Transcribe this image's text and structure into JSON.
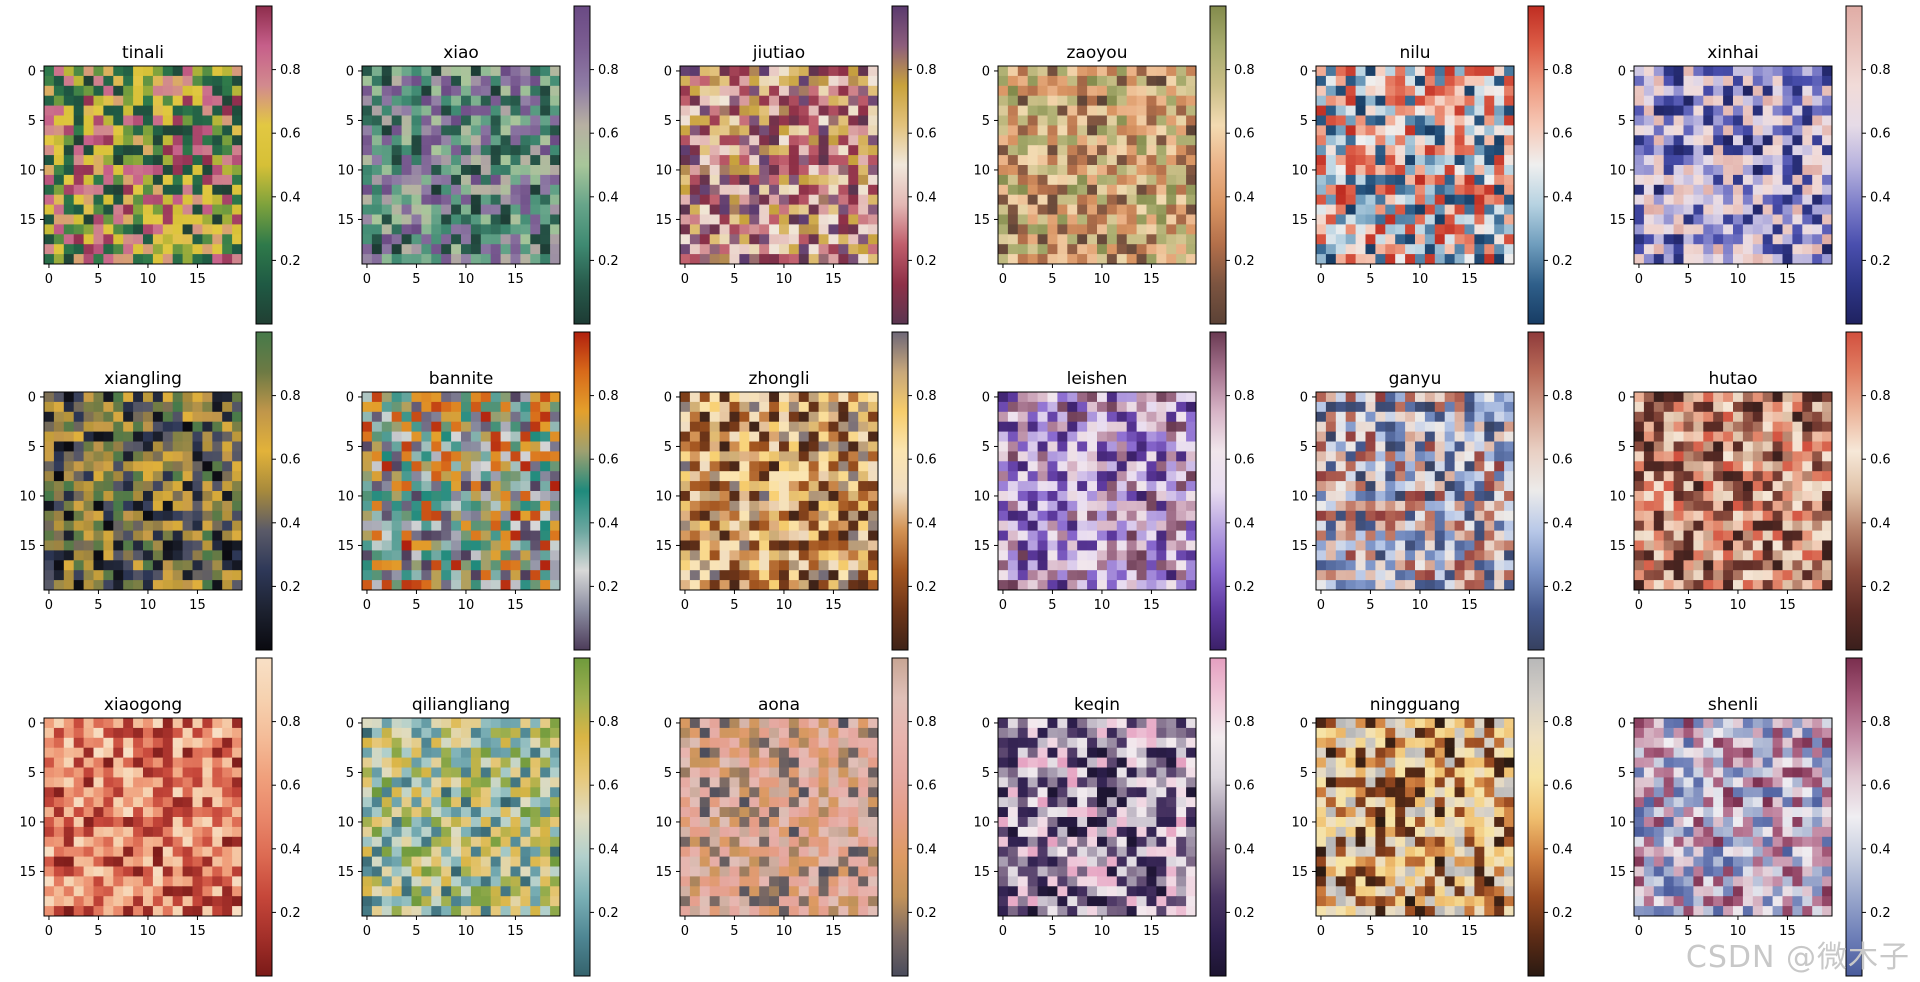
{
  "watermark": "CSDN @微木子",
  "chart_data": [
    {
      "type": "heatmap",
      "title": "tinali",
      "colormap": [
        "#213f33",
        "#1f5a44",
        "#2f7a4a",
        "#7ea23c",
        "#d6c037",
        "#e2c842",
        "#d28a8e",
        "#c65f8a",
        "#8e2d4c"
      ],
      "rows": 20,
      "cols": 20,
      "x_ticks": [
        0,
        5,
        10,
        15
      ],
      "y_ticks": [
        0,
        5,
        10,
        15
      ],
      "colorbar_ticks": [
        "0.2",
        "0.4",
        "0.6",
        "0.8"
      ],
      "value_range": [
        0,
        1
      ]
    },
    {
      "type": "heatmap",
      "title": "xiao",
      "colormap": [
        "#1d3b34",
        "#285b4c",
        "#3f8a72",
        "#67a58a",
        "#a8c69a",
        "#b7b0a2",
        "#8f7ca5",
        "#7b5d92",
        "#6a4a84"
      ],
      "rows": 20,
      "cols": 20,
      "x_ticks": [
        0,
        5,
        10,
        15
      ],
      "y_ticks": [
        0,
        5,
        10,
        15
      ],
      "colorbar_ticks": [
        "0.2",
        "0.4",
        "0.6",
        "0.8"
      ],
      "value_range": [
        0,
        1
      ]
    },
    {
      "type": "heatmap",
      "title": "jiutiao",
      "colormap": [
        "#5a3550",
        "#8e3047",
        "#c05e6c",
        "#e3b7b4",
        "#f1e8dc",
        "#e2c27c",
        "#c8a23c",
        "#8d5e7c",
        "#5a3a6e"
      ],
      "rows": 20,
      "cols": 20,
      "x_ticks": [
        0,
        5,
        10,
        15
      ],
      "y_ticks": [
        0,
        5,
        10,
        15
      ],
      "colorbar_ticks": [
        "0.2",
        "0.4",
        "0.6",
        "0.8"
      ],
      "value_range": [
        0,
        1
      ]
    },
    {
      "type": "heatmap",
      "title": "zaoyou",
      "colormap": [
        "#5b4236",
        "#7c5440",
        "#b36f4a",
        "#d99563",
        "#ebb388",
        "#f3dbb2",
        "#c9be86",
        "#a7ab6d",
        "#838b4c"
      ],
      "rows": 20,
      "cols": 20,
      "x_ticks": [
        0,
        5,
        10,
        15
      ],
      "y_ticks": [
        0,
        5,
        10,
        15
      ],
      "colorbar_ticks": [
        "0.2",
        "0.4",
        "0.6",
        "0.8"
      ],
      "value_range": [
        0,
        1
      ]
    },
    {
      "type": "heatmap",
      "title": "nilu",
      "colormap": [
        "#173c64",
        "#2f5f8a",
        "#6f9dbd",
        "#b6d2e1",
        "#efefef",
        "#f6c8b6",
        "#ee9a80",
        "#dd5d47",
        "#bf2d22"
      ],
      "rows": 20,
      "cols": 20,
      "x_ticks": [
        0,
        5,
        10,
        15
      ],
      "y_ticks": [
        0,
        5,
        10,
        15
      ],
      "colorbar_ticks": [
        "0.2",
        "0.4",
        "0.6",
        "0.8"
      ],
      "value_range": [
        0,
        1
      ]
    },
    {
      "type": "heatmap",
      "title": "xinhai",
      "colormap": [
        "#1f2260",
        "#2e3687",
        "#4a4fae",
        "#7d7ec9",
        "#b8b3de",
        "#e6dbe7",
        "#f1dbd8",
        "#e9c3bd",
        "#e0aca5"
      ],
      "rows": 20,
      "cols": 20,
      "x_ticks": [
        0,
        5,
        10,
        15
      ],
      "y_ticks": [
        0,
        5,
        10,
        15
      ],
      "colorbar_ticks": [
        "0.2",
        "0.4",
        "0.6",
        "0.8"
      ],
      "value_range": [
        0,
        1
      ]
    },
    {
      "type": "heatmap",
      "title": "xiangling",
      "colormap": [
        "#0a0a10",
        "#1d2230",
        "#2e3858",
        "#5a5a68",
        "#a78a3c",
        "#e2b23a",
        "#c0964a",
        "#6d7a44",
        "#467a4a"
      ],
      "rows": 20,
      "cols": 20,
      "x_ticks": [
        0,
        5,
        10,
        15
      ],
      "y_ticks": [
        0,
        5,
        10,
        15
      ],
      "colorbar_ticks": [
        "0.2",
        "0.4",
        "0.6",
        "0.8"
      ],
      "value_range": [
        0,
        1
      ]
    },
    {
      "type": "heatmap",
      "title": "bannite",
      "colormap": [
        "#4d3c5a",
        "#8a8ca0",
        "#d8d8d8",
        "#6ca7a0",
        "#1f8a7c",
        "#9ea070",
        "#e3a02c",
        "#d86a1a",
        "#b0200e"
      ],
      "rows": 20,
      "cols": 20,
      "x_ticks": [
        0,
        5,
        10,
        15
      ],
      "y_ticks": [
        0,
        5,
        10,
        15
      ],
      "colorbar_ticks": [
        "0.2",
        "0.4",
        "0.6",
        "0.8"
      ],
      "value_range": [
        0,
        1
      ]
    },
    {
      "type": "heatmap",
      "title": "zhongli",
      "colormap": [
        "#3f2318",
        "#6e3518",
        "#a3551f",
        "#d29152",
        "#f0ddc2",
        "#fbe5b1",
        "#f7cd6b",
        "#c7a77a",
        "#6f6878"
      ],
      "rows": 20,
      "cols": 20,
      "x_ticks": [
        0,
        5,
        10,
        15
      ],
      "y_ticks": [
        0,
        5,
        10,
        15
      ],
      "colorbar_ticks": [
        "0.2",
        "0.4",
        "0.6",
        "0.8"
      ],
      "value_range": [
        0,
        1
      ]
    },
    {
      "type": "heatmap",
      "title": "leishen",
      "colormap": [
        "#3b2068",
        "#5e3aa0",
        "#8a6ad0",
        "#b5a0e0",
        "#e8dcf0",
        "#f1e6ec",
        "#d7b4c6",
        "#a6748f",
        "#6a3a52"
      ],
      "rows": 20,
      "cols": 20,
      "x_ticks": [
        0,
        5,
        10,
        15
      ],
      "y_ticks": [
        0,
        5,
        10,
        15
      ],
      "colorbar_ticks": [
        "0.2",
        "0.4",
        "0.6",
        "0.8"
      ],
      "value_range": [
        0,
        1
      ]
    },
    {
      "type": "heatmap",
      "title": "ganyu",
      "colormap": [
        "#36405f",
        "#465a8f",
        "#7a92c6",
        "#b8c8e8",
        "#ecebea",
        "#e9d0c4",
        "#d5a08d",
        "#b96a58",
        "#8f3b3b"
      ],
      "rows": 20,
      "cols": 20,
      "x_ticks": [
        0,
        5,
        10,
        15
      ],
      "y_ticks": [
        0,
        5,
        10,
        15
      ],
      "colorbar_ticks": [
        "0.2",
        "0.4",
        "0.6",
        "0.8"
      ],
      "value_range": [
        0,
        1
      ]
    },
    {
      "type": "heatmap",
      "title": "hutao",
      "colormap": [
        "#3a1f1c",
        "#5e2c26",
        "#8a4a3c",
        "#b6806a",
        "#e0c2a8",
        "#f6e8d8",
        "#ecb49a",
        "#e07e63",
        "#d2503e"
      ],
      "rows": 20,
      "cols": 20,
      "x_ticks": [
        0,
        5,
        10,
        15
      ],
      "y_ticks": [
        0,
        5,
        10,
        15
      ],
      "colorbar_ticks": [
        "0.2",
        "0.4",
        "0.6",
        "0.8"
      ],
      "value_range": [
        0,
        1
      ]
    },
    {
      "type": "heatmap",
      "title": "xiaogong",
      "colormap": [
        "#7a1a18",
        "#a4302a",
        "#c6473a",
        "#dc6a52",
        "#e9876a",
        "#f0a07c",
        "#f4bc98",
        "#f6d2b0",
        "#f8e0c6"
      ],
      "rows": 20,
      "cols": 20,
      "x_ticks": [
        0,
        5,
        10,
        15
      ],
      "y_ticks": [
        0,
        5,
        10,
        15
      ],
      "colorbar_ticks": [
        "0.2",
        "0.4",
        "0.6",
        "0.8"
      ],
      "value_range": [
        0,
        1
      ]
    },
    {
      "type": "heatmap",
      "title": "qiliangliang",
      "colormap": [
        "#35636d",
        "#4f8794",
        "#7bb0b6",
        "#b2d0cc",
        "#e0dcc0",
        "#e6c87a",
        "#dab545",
        "#9eb050",
        "#6f9a3c"
      ],
      "rows": 20,
      "cols": 20,
      "x_ticks": [
        0,
        5,
        10,
        15
      ],
      "y_ticks": [
        0,
        5,
        10,
        15
      ],
      "colorbar_ticks": [
        "0.2",
        "0.4",
        "0.6",
        "0.8"
      ],
      "value_range": [
        0,
        1
      ]
    },
    {
      "type": "heatmap",
      "title": "aona",
      "colormap": [
        "#4a4c5c",
        "#7c6a64",
        "#c2925a",
        "#dd9a63",
        "#e59d86",
        "#e5a8a0",
        "#e8b4ae",
        "#e0c0b8",
        "#c7a594"
      ],
      "rows": 20,
      "cols": 20,
      "x_ticks": [
        0,
        5,
        10,
        15
      ],
      "y_ticks": [
        0,
        5,
        10,
        15
      ],
      "colorbar_ticks": [
        "0.2",
        "0.4",
        "0.6",
        "0.8"
      ],
      "value_range": [
        0,
        1
      ]
    },
    {
      "type": "heatmap",
      "title": "keqin",
      "colormap": [
        "#1c1430",
        "#2e1f4e",
        "#4a3564",
        "#7a6584",
        "#a79cb0",
        "#dcd6de",
        "#f3ecef",
        "#efc6d8",
        "#e5a0c0"
      ],
      "rows": 20,
      "cols": 20,
      "x_ticks": [
        0,
        5,
        10,
        15
      ],
      "y_ticks": [
        0,
        5,
        10,
        15
      ],
      "colorbar_ticks": [
        "0.2",
        "0.4",
        "0.6",
        "0.8"
      ],
      "value_range": [
        0,
        1
      ]
    },
    {
      "type": "heatmap",
      "title": "ningguang",
      "colormap": [
        "#2a1a12",
        "#5e2c16",
        "#9a4a20",
        "#d08040",
        "#f0c070",
        "#f7e3a2",
        "#efe0c0",
        "#d4cfc8",
        "#b8b8b8"
      ],
      "rows": 20,
      "cols": 20,
      "x_ticks": [
        0,
        5,
        10,
        15
      ],
      "y_ticks": [
        0,
        5,
        10,
        15
      ],
      "colorbar_ticks": [
        "0.2",
        "0.4",
        "0.6",
        "0.8"
      ],
      "value_range": [
        0,
        1
      ]
    },
    {
      "type": "heatmap",
      "title": "shenli",
      "colormap": [
        "#4a5c9c",
        "#6e7fb8",
        "#9aa7cc",
        "#c8cfe0",
        "#f0eef2",
        "#e0c8d2",
        "#c48ca6",
        "#a45878",
        "#7a2e4e"
      ],
      "rows": 20,
      "cols": 20,
      "x_ticks": [
        0,
        5,
        10,
        15
      ],
      "y_ticks": [
        0,
        5,
        10,
        15
      ],
      "colorbar_ticks": [
        "0.2",
        "0.4",
        "0.6",
        "0.8"
      ],
      "value_range": [
        0,
        1
      ]
    }
  ]
}
